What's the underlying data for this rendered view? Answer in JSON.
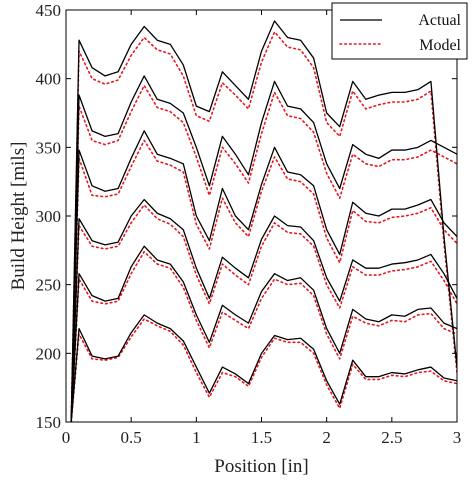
{
  "chart_data": {
    "type": "line",
    "xlabel": "Position [in]",
    "ylabel": "Build Height [mils]",
    "xlim": [
      0,
      3
    ],
    "ylim": [
      150,
      450
    ],
    "xticks": [
      0,
      0.5,
      1,
      1.5,
      2,
      2.5,
      3
    ],
    "xtick_labels": [
      "0",
      "0.5",
      "1",
      "1.5",
      "2",
      "2.5",
      "3"
    ],
    "yticks": [
      150,
      200,
      250,
      300,
      350,
      400,
      450
    ],
    "ytick_labels": [
      "150",
      "200",
      "250",
      "300",
      "350",
      "400",
      "450"
    ],
    "grid": false,
    "legend": {
      "placement": "top-right",
      "entries": [
        "Actual",
        "Model"
      ]
    },
    "colors": {
      "actual": "#000000",
      "model": "#e8161e"
    },
    "series": [
      {
        "name": "Actual",
        "style": "solid",
        "x": [
          0.04,
          0.1,
          0.2,
          0.3,
          0.4,
          0.5,
          0.6,
          0.7,
          0.8,
          0.9,
          1.0,
          1.1,
          1.2,
          1.3,
          1.4,
          1.5,
          1.6,
          1.7,
          1.8,
          1.9,
          2.0,
          2.1,
          2.2,
          2.3,
          2.4,
          2.5,
          2.6,
          2.7,
          2.8,
          2.9,
          3.0
        ],
        "segments": [
          [
            150,
            218,
            198,
            196,
            198,
            215,
            228,
            222,
            218,
            209,
            190,
            171,
            190,
            185,
            178,
            200,
            213,
            210,
            211,
            203,
            180,
            163,
            195,
            183,
            183,
            186,
            185,
            188,
            190,
            182,
            180
          ],
          [
            150,
            258,
            242,
            238,
            240,
            263,
            278,
            268,
            265,
            252,
            228,
            208,
            235,
            228,
            222,
            245,
            258,
            253,
            255,
            246,
            218,
            200,
            232,
            225,
            223,
            228,
            227,
            232,
            233,
            222,
            218
          ],
          [
            150,
            298,
            282,
            279,
            281,
            300,
            312,
            302,
            298,
            290,
            262,
            240,
            270,
            262,
            255,
            283,
            300,
            293,
            292,
            282,
            255,
            238,
            268,
            262,
            262,
            265,
            266,
            268,
            272,
            258,
            240
          ],
          [
            150,
            348,
            322,
            318,
            320,
            342,
            362,
            345,
            342,
            338,
            300,
            282,
            320,
            300,
            290,
            323,
            350,
            332,
            330,
            322,
            290,
            272,
            310,
            302,
            300,
            305,
            305,
            308,
            312,
            295,
            285
          ],
          [
            150,
            388,
            362,
            358,
            360,
            383,
            402,
            385,
            382,
            375,
            350,
            322,
            358,
            345,
            330,
            368,
            398,
            380,
            378,
            368,
            338,
            320,
            352,
            345,
            342,
            348,
            348,
            350,
            355,
            350,
            345
          ],
          [
            150,
            428,
            408,
            402,
            405,
            425,
            438,
            428,
            425,
            410,
            380,
            376,
            405,
            395,
            385,
            420,
            442,
            430,
            428,
            415,
            375,
            365,
            398,
            385,
            388,
            390,
            390,
            392,
            398,
            285,
            190
          ]
        ]
      },
      {
        "name": "Model",
        "style": "dotted",
        "x": [
          0.04,
          0.1,
          0.2,
          0.3,
          0.4,
          0.5,
          0.6,
          0.7,
          0.8,
          0.9,
          1.0,
          1.1,
          1.2,
          1.3,
          1.4,
          1.5,
          1.6,
          1.7,
          1.8,
          1.9,
          2.0,
          2.1,
          2.2,
          2.3,
          2.4,
          2.5,
          2.6,
          2.7,
          2.8,
          2.9,
          3.0
        ],
        "segments": [
          [
            150,
            214,
            196,
            195,
            197,
            212,
            225,
            220,
            216,
            206,
            186,
            168,
            186,
            183,
            176,
            197,
            211,
            208,
            208,
            200,
            177,
            160,
            192,
            181,
            181,
            184,
            183,
            186,
            187,
            180,
            178
          ],
          [
            150,
            254,
            238,
            236,
            238,
            258,
            274,
            265,
            262,
            248,
            224,
            204,
            230,
            224,
            218,
            240,
            254,
            250,
            251,
            242,
            214,
            196,
            227,
            222,
            220,
            224,
            223,
            228,
            229,
            218,
            214
          ],
          [
            150,
            293,
            278,
            276,
            278,
            295,
            308,
            298,
            294,
            285,
            257,
            236,
            265,
            257,
            250,
            278,
            295,
            288,
            287,
            278,
            250,
            233,
            263,
            257,
            257,
            260,
            261,
            263,
            267,
            253,
            236
          ],
          [
            150,
            342,
            315,
            314,
            316,
            336,
            355,
            340,
            337,
            332,
            294,
            276,
            313,
            295,
            285,
            318,
            343,
            327,
            325,
            316,
            284,
            266,
            304,
            296,
            295,
            299,
            300,
            302,
            306,
            290,
            280
          ],
          [
            150,
            380,
            355,
            352,
            355,
            376,
            395,
            379,
            376,
            368,
            343,
            315,
            350,
            338,
            324,
            360,
            390,
            373,
            371,
            361,
            331,
            313,
            345,
            338,
            336,
            341,
            341,
            343,
            348,
            343,
            338
          ],
          [
            150,
            420,
            400,
            396,
            399,
            417,
            430,
            421,
            418,
            402,
            373,
            369,
            397,
            388,
            378,
            412,
            434,
            423,
            421,
            408,
            368,
            358,
            391,
            378,
            381,
            383,
            383,
            385,
            391,
            280,
            186
          ]
        ]
      }
    ]
  }
}
